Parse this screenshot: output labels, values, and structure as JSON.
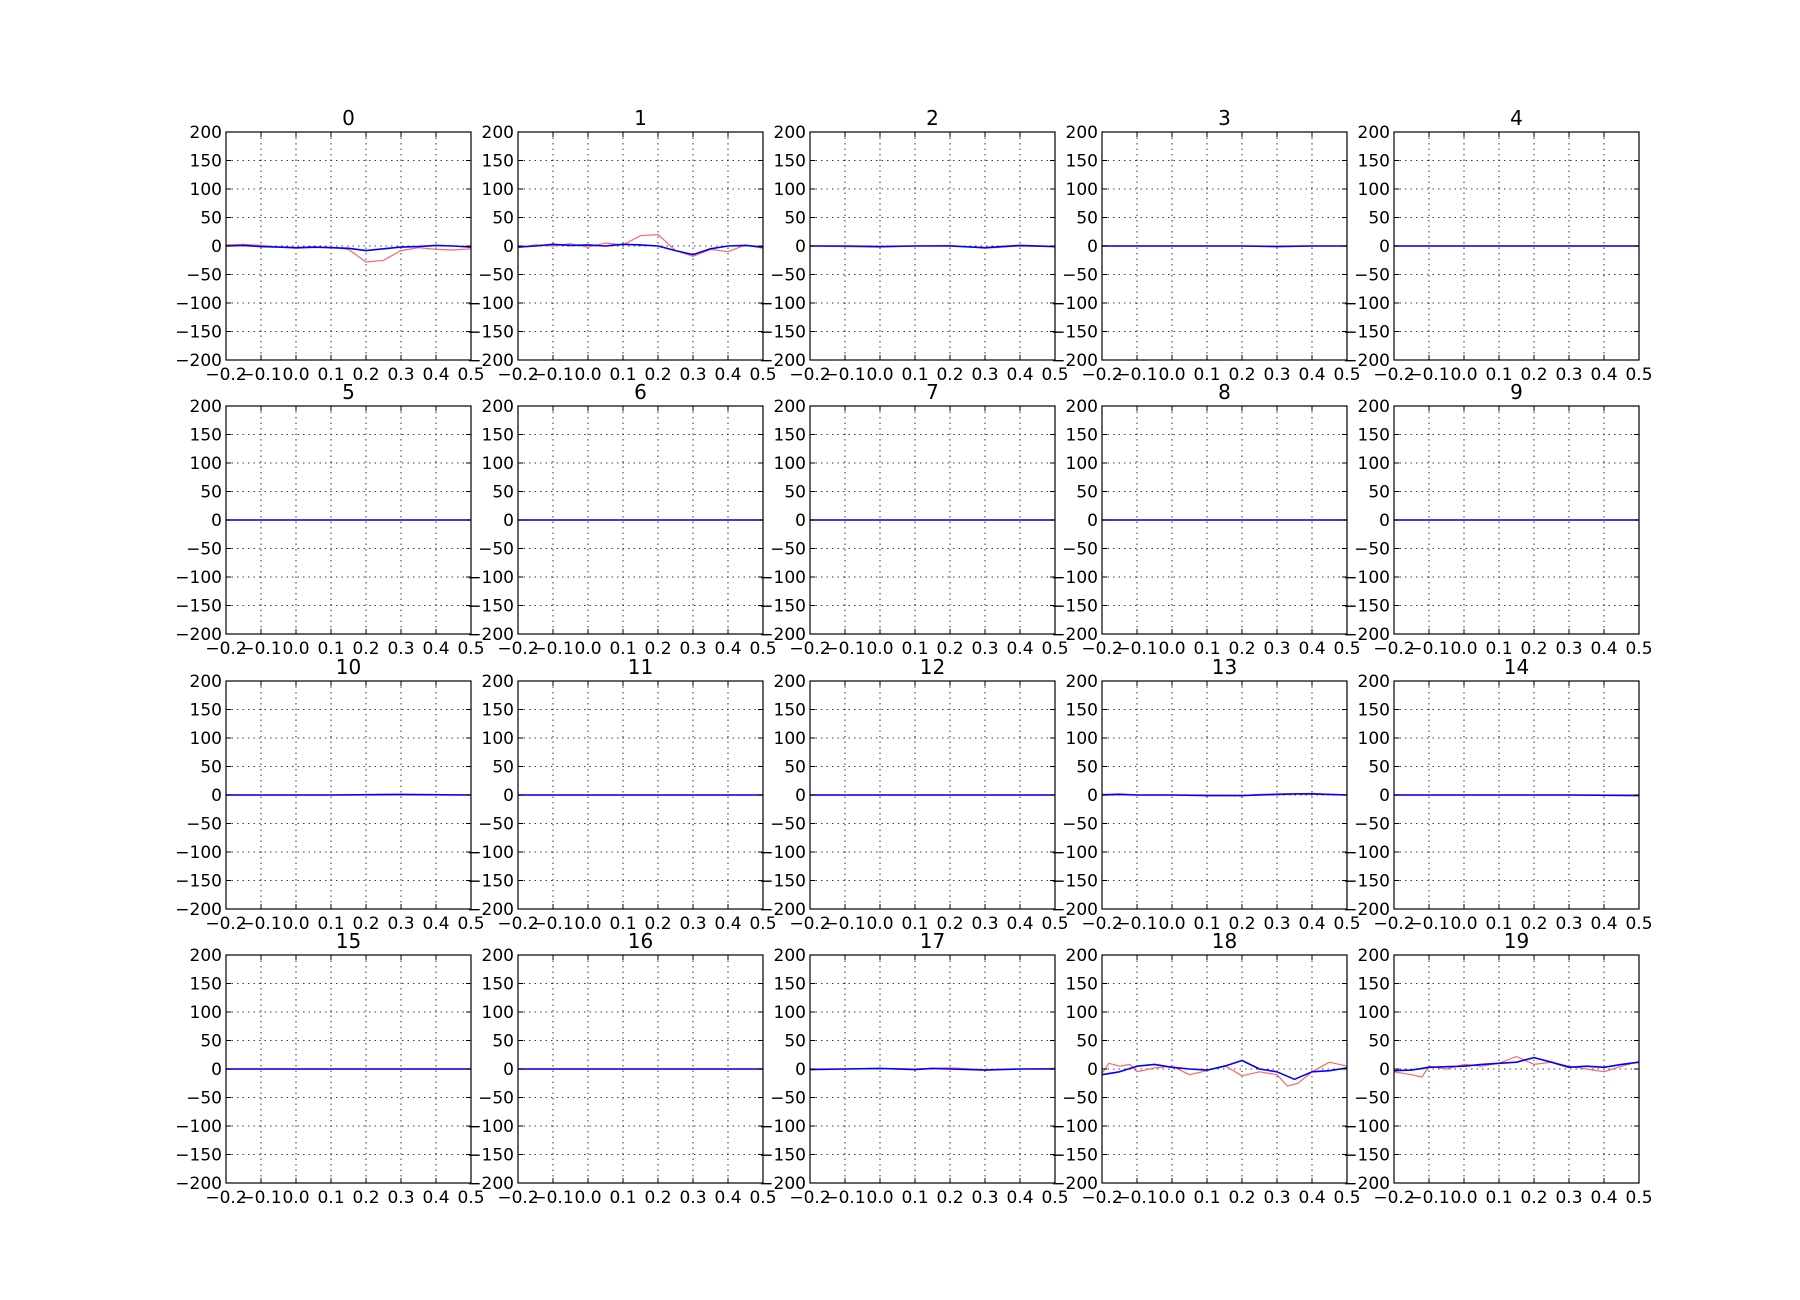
{
  "chart_data": {
    "type": "line",
    "layout": {
      "rows": 4,
      "cols": 5
    },
    "shared_axes": {
      "xlim": [
        -0.2,
        0.5
      ],
      "ylim": [
        -200,
        200
      ],
      "xticks": [
        -0.2,
        -0.1,
        0.0,
        0.1,
        0.2,
        0.3,
        0.4,
        0.5
      ],
      "xtick_labels": [
        "−0.2",
        "−0.1",
        "0.0",
        "0.1",
        "0.2",
        "0.3",
        "0.4",
        "0.5"
      ],
      "yticks": [
        200,
        150,
        100,
        50,
        0,
        -50,
        -100,
        -150,
        -200
      ],
      "ytick_labels": [
        "200",
        "150",
        "100",
        "50",
        "0",
        "−50",
        "−100",
        "−150",
        "−200"
      ],
      "grid": true
    },
    "series_styles": [
      {
        "key": "red",
        "color": "#ff6666"
      },
      {
        "key": "blue",
        "color": "#0000ff"
      }
    ],
    "panels": [
      {
        "title": "0",
        "red": {
          "x": [
            -0.2,
            -0.15,
            -0.1,
            -0.05,
            0,
            0.05,
            0.1,
            0.15,
            0.2,
            0.25,
            0.3,
            0.35,
            0.4,
            0.45,
            0.5
          ],
          "y": [
            2,
            3,
            1,
            -2,
            -4,
            -3,
            -2,
            -6,
            -28,
            -25,
            -8,
            -3,
            -6,
            -7,
            -5
          ]
        },
        "blue": {
          "x": [
            -0.2,
            -0.15,
            -0.1,
            -0.05,
            0,
            0.05,
            0.1,
            0.15,
            0.2,
            0.25,
            0.3,
            0.35,
            0.4,
            0.45,
            0.5
          ],
          "y": [
            0,
            1,
            -1,
            -2,
            -3,
            -2,
            -3,
            -4,
            -8,
            -5,
            -2,
            -1,
            1,
            0,
            -2
          ]
        }
      },
      {
        "title": "1",
        "red": {
          "x": [
            -0.2,
            -0.15,
            -0.1,
            -0.05,
            0,
            0.05,
            0.1,
            0.15,
            0.2,
            0.25,
            0.3,
            0.35,
            0.4,
            0.45,
            0.5
          ],
          "y": [
            -3,
            2,
            0,
            4,
            -2,
            5,
            2,
            18,
            20,
            -8,
            -18,
            -6,
            -10,
            2,
            -4
          ]
        },
        "blue": {
          "x": [
            -0.2,
            -0.15,
            -0.1,
            -0.05,
            0,
            0.05,
            0.1,
            0.15,
            0.2,
            0.25,
            0.3,
            0.35,
            0.4,
            0.45,
            0.5
          ],
          "y": [
            -2,
            0,
            3,
            1,
            2,
            0,
            3,
            2,
            0,
            -8,
            -15,
            -5,
            0,
            1,
            -2
          ]
        }
      },
      {
        "title": "2",
        "red": {
          "x": [
            -0.2,
            -0.1,
            0,
            0.1,
            0.2,
            0.3,
            0.4,
            0.5
          ],
          "y": [
            0,
            -1,
            -2,
            0,
            1,
            -4,
            0,
            -1
          ]
        },
        "blue": {
          "x": [
            -0.2,
            -0.1,
            0,
            0.1,
            0.2,
            0.3,
            0.4,
            0.5
          ],
          "y": [
            0,
            0,
            -1,
            0,
            0,
            -3,
            1,
            -1
          ]
        }
      },
      {
        "title": "3",
        "red": {
          "x": [
            -0.2,
            0.5
          ],
          "y": [
            0,
            0
          ]
        },
        "blue": {
          "x": [
            -0.2,
            -0.1,
            0,
            0.1,
            0.2,
            0.3,
            0.4,
            0.5
          ],
          "y": [
            0,
            0,
            0,
            0,
            0,
            -1,
            0,
            0
          ]
        }
      },
      {
        "title": "4",
        "red": {
          "x": [
            -0.2,
            0.5
          ],
          "y": [
            0,
            0
          ]
        },
        "blue": {
          "x": [
            -0.2,
            0.5
          ],
          "y": [
            0,
            0
          ]
        }
      },
      {
        "title": "5",
        "red": {
          "x": [
            -0.2,
            0.5
          ],
          "y": [
            0,
            0
          ]
        },
        "blue": {
          "x": [
            -0.2,
            0.5
          ],
          "y": [
            0,
            0
          ]
        }
      },
      {
        "title": "6",
        "red": {
          "x": [
            -0.2,
            0.5
          ],
          "y": [
            0,
            0
          ]
        },
        "blue": {
          "x": [
            -0.2,
            0.5
          ],
          "y": [
            0,
            0
          ]
        }
      },
      {
        "title": "7",
        "red": {
          "x": [
            -0.2,
            0.5
          ],
          "y": [
            0,
            0
          ]
        },
        "blue": {
          "x": [
            -0.2,
            0.5
          ],
          "y": [
            0,
            0
          ]
        }
      },
      {
        "title": "8",
        "red": {
          "x": [
            -0.2,
            0.5
          ],
          "y": [
            0,
            0
          ]
        },
        "blue": {
          "x": [
            -0.2,
            0.5
          ],
          "y": [
            0,
            0
          ]
        }
      },
      {
        "title": "9",
        "red": {
          "x": [
            -0.2,
            0.5
          ],
          "y": [
            0,
            0
          ]
        },
        "blue": {
          "x": [
            -0.2,
            0.5
          ],
          "y": [
            0,
            0
          ]
        }
      },
      {
        "title": "10",
        "red": {
          "x": [
            -0.2,
            0.5
          ],
          "y": [
            0,
            0
          ]
        },
        "blue": {
          "x": [
            -0.2,
            0.1,
            0.3,
            0.5
          ],
          "y": [
            0,
            0,
            1,
            0
          ]
        }
      },
      {
        "title": "11",
        "red": {
          "x": [
            -0.2,
            0.5
          ],
          "y": [
            0,
            0
          ]
        },
        "blue": {
          "x": [
            -0.2,
            0.5
          ],
          "y": [
            0,
            0
          ]
        }
      },
      {
        "title": "12",
        "red": {
          "x": [
            -0.2,
            0.5
          ],
          "y": [
            0,
            0
          ]
        },
        "blue": {
          "x": [
            -0.2,
            0.5
          ],
          "y": [
            0,
            0
          ]
        }
      },
      {
        "title": "13",
        "red": {
          "x": [
            -0.2,
            -0.15,
            -0.1,
            0,
            0.1,
            0.2,
            0.25,
            0.3,
            0.35,
            0.4,
            0.45,
            0.5
          ],
          "y": [
            1,
            2,
            0,
            0,
            0,
            -1,
            1,
            2,
            2,
            3,
            1,
            0
          ]
        },
        "blue": {
          "x": [
            -0.2,
            -0.15,
            -0.1,
            0,
            0.1,
            0.2,
            0.25,
            0.3,
            0.35,
            0.4,
            0.45,
            0.5
          ],
          "y": [
            0,
            1,
            0,
            0,
            -1,
            -1,
            0,
            1,
            2,
            2,
            1,
            0
          ]
        }
      },
      {
        "title": "14",
        "red": {
          "x": [
            -0.2,
            0.5
          ],
          "y": [
            0,
            0
          ]
        },
        "blue": {
          "x": [
            -0.2,
            0.1,
            0.3,
            0.5
          ],
          "y": [
            0,
            0,
            0,
            -1
          ]
        }
      },
      {
        "title": "15",
        "red": {
          "x": [
            -0.2,
            0.5
          ],
          "y": [
            0,
            0
          ]
        },
        "blue": {
          "x": [
            -0.2,
            0.5
          ],
          "y": [
            0,
            0
          ]
        }
      },
      {
        "title": "16",
        "red": {
          "x": [
            -0.2,
            0.5
          ],
          "y": [
            0,
            0
          ]
        },
        "blue": {
          "x": [
            -0.2,
            0.5
          ],
          "y": [
            0,
            0
          ]
        }
      },
      {
        "title": "17",
        "red": {
          "x": [
            -0.2,
            -0.1,
            0,
            0.1,
            0.15,
            0.2,
            0.3,
            0.4,
            0.5
          ],
          "y": [
            0,
            0,
            1,
            0,
            1,
            2,
            -1,
            0,
            1
          ]
        },
        "blue": {
          "x": [
            -0.2,
            -0.1,
            0,
            0.1,
            0.15,
            0.2,
            0.3,
            0.4,
            0.5
          ],
          "y": [
            -1,
            0,
            1,
            -1,
            1,
            0,
            -2,
            0,
            0
          ]
        }
      },
      {
        "title": "18",
        "red": {
          "x": [
            -0.2,
            -0.18,
            -0.15,
            -0.12,
            -0.1,
            -0.05,
            0,
            0.05,
            0.1,
            0.15,
            0.2,
            0.25,
            0.3,
            0.33,
            0.36,
            0.4,
            0.45,
            0.5
          ],
          "y": [
            -8,
            10,
            5,
            8,
            -5,
            2,
            5,
            -10,
            -3,
            6,
            -12,
            -5,
            -10,
            -30,
            -25,
            -5,
            12,
            5
          ]
        },
        "blue": {
          "x": [
            -0.2,
            -0.15,
            -0.1,
            -0.05,
            0,
            0.05,
            0.1,
            0.15,
            0.2,
            0.25,
            0.3,
            0.35,
            0.4,
            0.45,
            0.5
          ],
          "y": [
            -10,
            -5,
            5,
            8,
            3,
            0,
            -2,
            5,
            15,
            0,
            -5,
            -18,
            -5,
            -3,
            2
          ]
        }
      },
      {
        "title": "19",
        "red": {
          "x": [
            -0.2,
            -0.15,
            -0.12,
            -0.1,
            -0.05,
            0,
            0.05,
            0.1,
            0.15,
            0.2,
            0.25,
            0.3,
            0.35,
            0.4,
            0.45,
            0.5
          ],
          "y": [
            -5,
            -10,
            -14,
            5,
            0,
            8,
            5,
            10,
            22,
            8,
            12,
            5,
            0,
            -5,
            5,
            13
          ]
        },
        "blue": {
          "x": [
            -0.2,
            -0.15,
            -0.1,
            -0.05,
            0,
            0.05,
            0.1,
            0.15,
            0.2,
            0.25,
            0.3,
            0.35,
            0.4,
            0.45,
            0.5
          ],
          "y": [
            -3,
            -2,
            3,
            4,
            5,
            8,
            10,
            12,
            20,
            12,
            3,
            5,
            3,
            8,
            12
          ]
        }
      }
    ]
  }
}
